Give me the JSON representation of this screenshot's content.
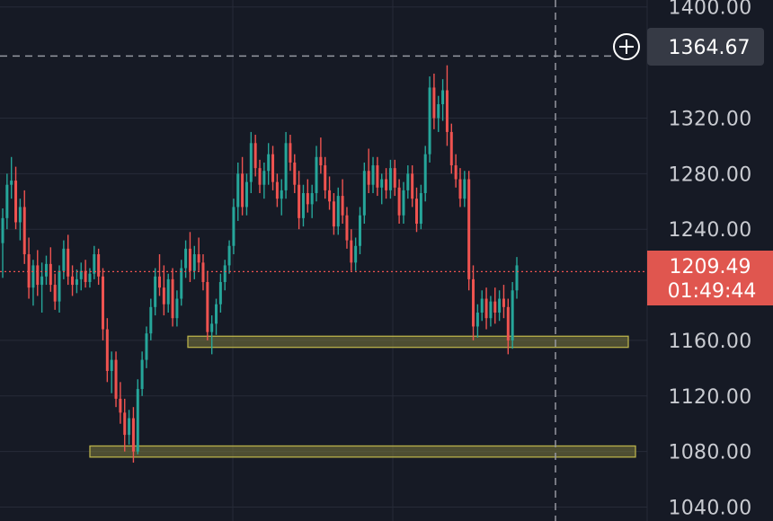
{
  "colors": {
    "background": "#161a25",
    "grid": "#262b38",
    "up": "#26a69a",
    "down": "#ef5350",
    "zone_fill": "#7d7a3e",
    "zone_stroke": "#b8b04a",
    "crosshair": "#9598a1",
    "last_price_line": "#ef5350",
    "last_price_box": "#e0564f",
    "cross_box": "#363a45",
    "axis_text": "#c9cbd1"
  },
  "icons": {
    "crosshair_add": "plus-circle-icon"
  },
  "price_axis": {
    "ticks": [
      "1400.00",
      "1364.67",
      "1320.00",
      "1280.00",
      "1240.00",
      "1209.49",
      "1160.00",
      "1120.00",
      "1080.00",
      "1040.00"
    ],
    "tick_values": [
      1400,
      1320,
      1280,
      1240,
      1160,
      1120,
      1080,
      1040
    ],
    "tick_labels": [
      "1400.00",
      "1320.00",
      "1280.00",
      "1240.00",
      "1160.00",
      "1120.00",
      "1080.00",
      "1040.00"
    ],
    "crosshair_price": "1364.67",
    "last_price": "1209.49",
    "countdown": "01:49:44"
  },
  "chart_data": {
    "type": "candlestick",
    "ylim": [
      1030,
      1405
    ],
    "grid": true,
    "crosshair": {
      "price": 1364.67,
      "position": "right side, vertical dashed line"
    },
    "last_price": 1209.49,
    "zones": [
      {
        "name": "",
        "low": 1155,
        "high": 1163
      },
      {
        "name": "",
        "low": 1076,
        "high": 1084
      }
    ],
    "candles": [
      [
        1230,
        1255,
        1205,
        1248
      ],
      [
        1248,
        1280,
        1240,
        1272
      ],
      [
        1272,
        1292,
        1262,
        1275
      ],
      [
        1275,
        1285,
        1240,
        1245
      ],
      [
        1245,
        1262,
        1232,
        1256
      ],
      [
        1256,
        1268,
        1215,
        1222
      ],
      [
        1222,
        1234,
        1190,
        1198
      ],
      [
        1198,
        1218,
        1185,
        1214
      ],
      [
        1214,
        1225,
        1192,
        1200
      ],
      [
        1200,
        1216,
        1180,
        1206
      ],
      [
        1206,
        1221,
        1200,
        1215
      ],
      [
        1215,
        1227,
        1195,
        1200
      ],
      [
        1200,
        1208,
        1182,
        1188
      ],
      [
        1188,
        1214,
        1180,
        1210
      ],
      [
        1210,
        1232,
        1204,
        1226
      ],
      [
        1226,
        1236,
        1200,
        1206
      ],
      [
        1206,
        1214,
        1192,
        1200
      ],
      [
        1200,
        1211,
        1194,
        1204
      ],
      [
        1204,
        1216,
        1196,
        1210
      ],
      [
        1210,
        1218,
        1198,
        1202
      ],
      [
        1202,
        1212,
        1198,
        1208
      ],
      [
        1208,
        1228,
        1204,
        1222
      ],
      [
        1222,
        1226,
        1200,
        1206
      ],
      [
        1206,
        1212,
        1160,
        1168
      ],
      [
        1168,
        1176,
        1130,
        1138
      ],
      [
        1138,
        1152,
        1122,
        1146
      ],
      [
        1146,
        1152,
        1112,
        1118
      ],
      [
        1118,
        1130,
        1100,
        1108
      ],
      [
        1108,
        1118,
        1080,
        1092
      ],
      [
        1092,
        1110,
        1085,
        1104
      ],
      [
        1104,
        1112,
        1072,
        1080
      ],
      [
        1080,
        1132,
        1078,
        1125
      ],
      [
        1125,
        1152,
        1120,
        1146
      ],
      [
        1146,
        1170,
        1140,
        1165
      ],
      [
        1165,
        1190,
        1160,
        1184
      ],
      [
        1184,
        1212,
        1178,
        1206
      ],
      [
        1206,
        1222,
        1192,
        1198
      ],
      [
        1198,
        1214,
        1178,
        1186
      ],
      [
        1186,
        1208,
        1180,
        1204
      ],
      [
        1204,
        1212,
        1170,
        1176
      ],
      [
        1176,
        1196,
        1170,
        1190
      ],
      [
        1190,
        1218,
        1185,
        1212
      ],
      [
        1212,
        1232,
        1205,
        1226
      ],
      [
        1226,
        1238,
        1202,
        1210
      ],
      [
        1210,
        1228,
        1204,
        1222
      ],
      [
        1222,
        1234,
        1210,
        1216
      ],
      [
        1216,
        1222,
        1196,
        1202
      ],
      [
        1202,
        1210,
        1160,
        1166
      ],
      [
        1166,
        1178,
        1150,
        1172
      ],
      [
        1172,
        1190,
        1164,
        1186
      ],
      [
        1186,
        1208,
        1180,
        1202
      ],
      [
        1202,
        1218,
        1196,
        1214
      ],
      [
        1214,
        1232,
        1208,
        1228
      ],
      [
        1228,
        1262,
        1222,
        1256
      ],
      [
        1256,
        1288,
        1246,
        1280
      ],
      [
        1280,
        1292,
        1250,
        1256
      ],
      [
        1256,
        1280,
        1250,
        1274
      ],
      [
        1274,
        1310,
        1266,
        1302
      ],
      [
        1302,
        1308,
        1278,
        1284
      ],
      [
        1284,
        1290,
        1266,
        1272
      ],
      [
        1272,
        1288,
        1262,
        1282
      ],
      [
        1282,
        1302,
        1272,
        1294
      ],
      [
        1294,
        1300,
        1268,
        1274
      ],
      [
        1274,
        1280,
        1256,
        1262
      ],
      [
        1262,
        1276,
        1250,
        1268
      ],
      [
        1268,
        1310,
        1262,
        1302
      ],
      [
        1302,
        1308,
        1282,
        1288
      ],
      [
        1288,
        1294,
        1266,
        1272
      ],
      [
        1272,
        1282,
        1240,
        1248
      ],
      [
        1248,
        1272,
        1242,
        1266
      ],
      [
        1266,
        1276,
        1252,
        1258
      ],
      [
        1258,
        1272,
        1248,
        1266
      ],
      [
        1266,
        1300,
        1260,
        1292
      ],
      [
        1292,
        1306,
        1280,
        1286
      ],
      [
        1286,
        1292,
        1262,
        1268
      ],
      [
        1268,
        1278,
        1254,
        1260
      ],
      [
        1260,
        1266,
        1236,
        1242
      ],
      [
        1242,
        1270,
        1236,
        1264
      ],
      [
        1264,
        1276,
        1244,
        1250
      ],
      [
        1250,
        1256,
        1226,
        1232
      ],
      [
        1232,
        1240,
        1210,
        1216
      ],
      [
        1216,
        1234,
        1210,
        1228
      ],
      [
        1228,
        1256,
        1222,
        1250
      ],
      [
        1250,
        1288,
        1244,
        1282
      ],
      [
        1282,
        1298,
        1266,
        1272
      ],
      [
        1272,
        1292,
        1266,
        1286
      ],
      [
        1286,
        1292,
        1264,
        1270
      ],
      [
        1270,
        1280,
        1258,
        1276
      ],
      [
        1276,
        1284,
        1262,
        1268
      ],
      [
        1268,
        1290,
        1262,
        1284
      ],
      [
        1284,
        1290,
        1264,
        1270
      ],
      [
        1270,
        1276,
        1244,
        1250
      ],
      [
        1250,
        1274,
        1244,
        1268
      ],
      [
        1268,
        1286,
        1262,
        1280
      ],
      [
        1280,
        1286,
        1256,
        1262
      ],
      [
        1262,
        1270,
        1238,
        1244
      ],
      [
        1244,
        1272,
        1240,
        1266
      ],
      [
        1266,
        1300,
        1260,
        1294
      ],
      [
        1294,
        1350,
        1288,
        1342
      ],
      [
        1342,
        1352,
        1312,
        1320
      ],
      [
        1320,
        1336,
        1310,
        1330
      ],
      [
        1330,
        1348,
        1318,
        1340
      ],
      [
        1340,
        1358,
        1300,
        1310
      ],
      [
        1310,
        1316,
        1280,
        1286
      ],
      [
        1286,
        1294,
        1270,
        1276
      ],
      [
        1276,
        1284,
        1256,
        1262
      ],
      [
        1262,
        1282,
        1256,
        1276
      ],
      [
        1276,
        1282,
        1196,
        1204
      ],
      [
        1204,
        1214,
        1160,
        1170
      ],
      [
        1170,
        1186,
        1162,
        1180
      ],
      [
        1180,
        1196,
        1174,
        1190
      ],
      [
        1190,
        1198,
        1168,
        1176
      ],
      [
        1176,
        1192,
        1170,
        1188
      ],
      [
        1188,
        1198,
        1172,
        1180
      ],
      [
        1180,
        1196,
        1174,
        1190
      ],
      [
        1190,
        1200,
        1176,
        1184
      ],
      [
        1184,
        1190,
        1150,
        1160
      ],
      [
        1160,
        1202,
        1154,
        1196
      ],
      [
        1196,
        1220,
        1190,
        1214
      ]
    ]
  }
}
